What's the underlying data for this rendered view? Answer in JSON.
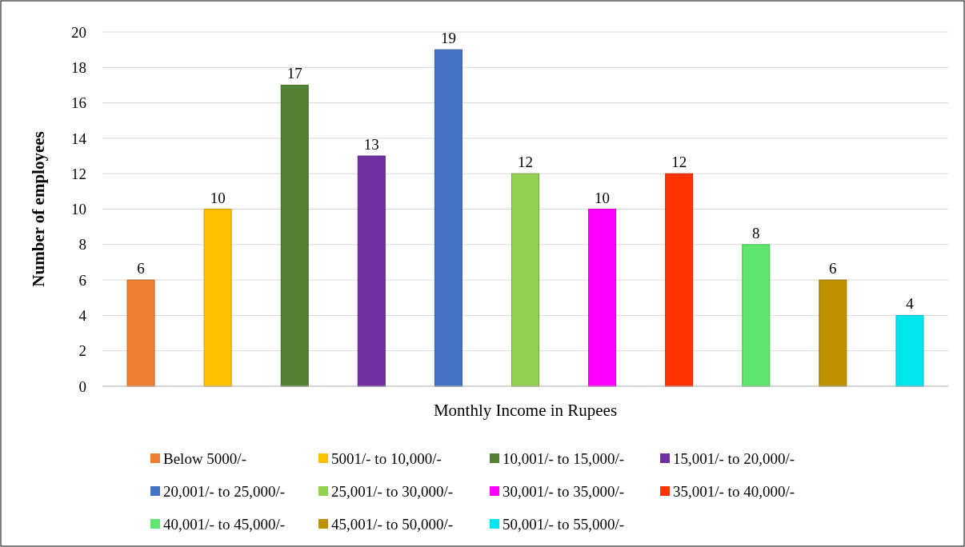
{
  "chart_data": {
    "type": "bar",
    "xlabel": "Monthly Income in Rupees",
    "ylabel": "Number of employees",
    "categories": [
      null,
      null,
      null,
      null,
      null,
      null,
      null,
      null,
      null,
      null,
      null
    ],
    "series": [
      {
        "name": "Below 5000/-",
        "color": "#ed7d31",
        "values": [
          6,
          null,
          null,
          null,
          null,
          null,
          null,
          null,
          null,
          null,
          null
        ]
      },
      {
        "name": "5001/- to 10,000/-",
        "color": "#ffc000",
        "values": [
          null,
          10,
          null,
          null,
          null,
          null,
          null,
          null,
          null,
          null,
          null
        ]
      },
      {
        "name": "10,001/- to 15,000/-",
        "color": "#548235",
        "values": [
          null,
          null,
          17,
          null,
          null,
          null,
          null,
          null,
          null,
          null,
          null
        ]
      },
      {
        "name": "15,001/- to 20,000/-",
        "color": "#7030a0",
        "values": [
          null,
          null,
          null,
          13,
          null,
          null,
          null,
          null,
          null,
          null,
          null
        ]
      },
      {
        "name": "20,001/- to 25,000/-",
        "color": "#4472c4",
        "values": [
          null,
          null,
          null,
          null,
          19,
          null,
          null,
          null,
          null,
          null,
          null
        ]
      },
      {
        "name": "25,001/- to 30,000/-",
        "color": "#92d050",
        "values": [
          null,
          null,
          null,
          null,
          null,
          12,
          null,
          null,
          null,
          null,
          null
        ]
      },
      {
        "name": "30,001/- to 35,000/-",
        "color": "#ff00ff",
        "values": [
          null,
          null,
          null,
          null,
          null,
          null,
          10,
          null,
          null,
          null,
          null
        ]
      },
      {
        "name": "35,001/- to 40,000/-",
        "color": "#ff3300",
        "values": [
          null,
          null,
          null,
          null,
          null,
          null,
          null,
          12,
          null,
          null,
          null
        ]
      },
      {
        "name": "40,001/- to 45,000/-",
        "color": "#5ee66e",
        "values": [
          null,
          null,
          null,
          null,
          null,
          null,
          null,
          null,
          8,
          null,
          null
        ]
      },
      {
        "name": "45,001/- to 50,000/-",
        "color": "#bf9000",
        "values": [
          null,
          null,
          null,
          null,
          null,
          null,
          null,
          null,
          null,
          6,
          null
        ]
      },
      {
        "name": "50,001/- to 55,000/-",
        "color": "#00e5ee",
        "values": [
          null,
          null,
          null,
          null,
          null,
          null,
          null,
          null,
          null,
          null,
          4
        ]
      }
    ],
    "ylim": [
      0,
      20
    ],
    "yticks": [
      0,
      2,
      4,
      6,
      8,
      10,
      12,
      14,
      16,
      18,
      20
    ],
    "grid": "y",
    "data_labels": true,
    "legend": "bottom",
    "tick_labels": "y"
  }
}
